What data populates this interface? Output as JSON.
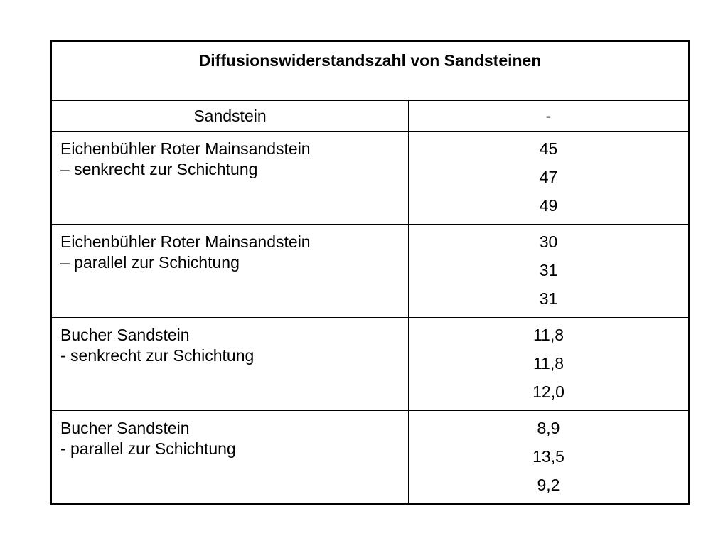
{
  "table": {
    "title": "Diffusionswiderstandszahl von Sandsteinen",
    "header": {
      "name": "Sandstein",
      "value": "-"
    },
    "rows": [
      {
        "name_line1": "Eichenbühler Roter Mainsandstein",
        "name_line2": "– senkrecht zur Schichtung",
        "values": [
          "45",
          "47",
          "49"
        ]
      },
      {
        "name_line1": "Eichenbühler Roter Mainsandstein",
        "name_line2": "– parallel zur Schichtung",
        "values": [
          "30",
          "31",
          "31"
        ]
      },
      {
        "name_line1": "Bucher Sandstein",
        "name_line2": "- senkrecht zur Schichtung",
        "values": [
          "11,8",
          "11,8",
          "12,0"
        ]
      },
      {
        "name_line1": "Bucher Sandstein",
        "name_line2": "- parallel zur Schichtung",
        "values": [
          "8,9",
          "13,5",
          "9,2"
        ]
      }
    ]
  }
}
